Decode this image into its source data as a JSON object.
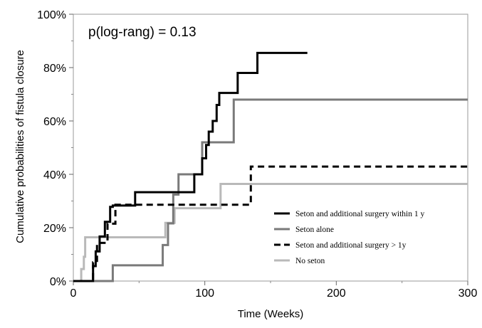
{
  "chart_data": {
    "type": "line",
    "step": true,
    "title": "",
    "annotation": "p(log-rang) = 0.13",
    "xlabel": "Time (Weeks)",
    "ylabel": "Cumulative probabilities of fistula closure",
    "xlim": [
      0,
      300
    ],
    "ylim": [
      0,
      100
    ],
    "x_ticks": [
      0,
      100,
      200,
      300
    ],
    "x_tick_labels": [
      "0",
      "100",
      "200",
      "300"
    ],
    "y_ticks": [
      0,
      20,
      40,
      60,
      80,
      100
    ],
    "y_tick_labels": [
      "0%",
      "20%",
      "40%",
      "60%",
      "80%",
      "100%"
    ],
    "x_minor_ticks": [
      50,
      150,
      250
    ],
    "y_minor_ticks": [
      10,
      30,
      50,
      70,
      90
    ],
    "grid": false,
    "legend_position": "bottom-right",
    "series": [
      {
        "name": "Seton and additional surgery within 1 y",
        "color": "#000000",
        "dash": "solid",
        "x": [
          0,
          15,
          17,
          20,
          24,
          28,
          30,
          47,
          92,
          98,
          101,
          103,
          106,
          109,
          111,
          120,
          125,
          134,
          140,
          178
        ],
        "y": [
          0,
          5.6,
          11.1,
          16.7,
          22.2,
          27.8,
          28.3,
          33.3,
          40.0,
          46.0,
          51.0,
          56.0,
          60.0,
          66.0,
          70.5,
          70.5,
          78.0,
          78.0,
          85.5,
          85.5
        ]
      },
      {
        "name": "Seton alone",
        "color": "#7a7a7a",
        "dash": "solid",
        "x": [
          0,
          30,
          68,
          72,
          76,
          80,
          92,
          98,
          110,
          122,
          230,
          300
        ],
        "y": [
          0,
          5.9,
          13.5,
          21.6,
          32.4,
          40.0,
          40.0,
          52.0,
          52.0,
          68.0,
          68.0,
          68.0
        ],
        "visible_points": [
          [
            0,
            0
          ],
          [
            30,
            5.9
          ],
          [
            68,
            13.5
          ],
          [
            72,
            21.6
          ],
          [
            76,
            32.4
          ],
          [
            80,
            40.0
          ],
          [
            98,
            52.0
          ],
          [
            122,
            68.0
          ],
          [
            300,
            68.0
          ]
        ]
      },
      {
        "name": "Seton and additional surgery > 1y",
        "color": "#000000",
        "dash": "dashed",
        "x": [
          0,
          15,
          18,
          26,
          32,
          135,
          300
        ],
        "y": [
          0,
          7.0,
          14.3,
          21.5,
          28.6,
          42.9,
          42.9
        ]
      },
      {
        "name": "No seton",
        "color": "#b9b9b9",
        "dash": "solid",
        "x": [
          0,
          6,
          8,
          9,
          64,
          70,
          77,
          112,
          300
        ],
        "y": [
          0,
          4.5,
          9.1,
          16.4,
          16.4,
          21.8,
          27.3,
          36.4,
          36.4
        ]
      }
    ]
  }
}
